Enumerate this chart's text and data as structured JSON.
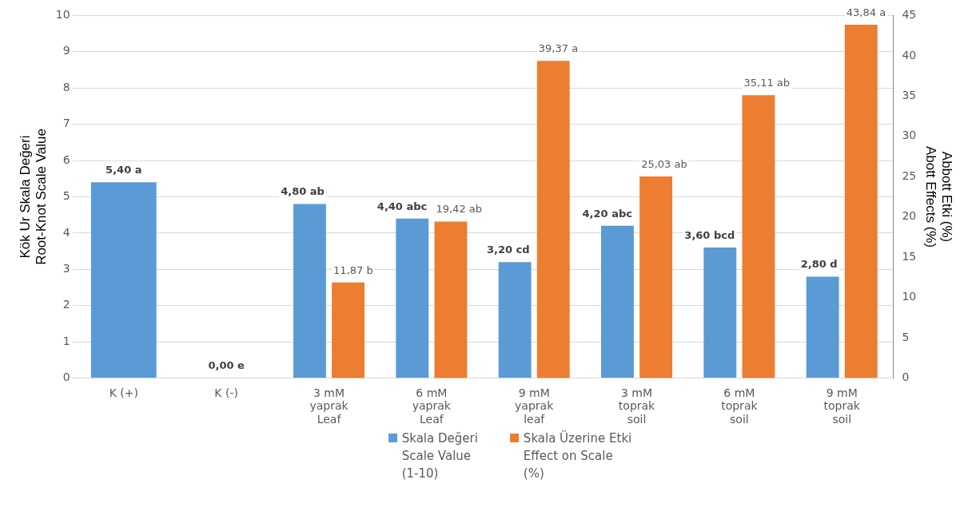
{
  "chart_data": {
    "type": "bar",
    "ylabel": "Kök Ur Skala Değeri\nRoot-Knot Scale Value",
    "y2label": "Abbott Etki (%)\nAbott Effects (%)",
    "categories": [
      "K (+)",
      "K (-)",
      "3 mM\nyaprak\nLeaf",
      "6 mM\nyaprak\nLeaf",
      "9 mM\nyaprak\nleaf",
      "3 mM\ntoprak\nsoil",
      "6 mM\ntoprak\nsoil",
      "9 mM\ntoprak\nsoil"
    ],
    "series": [
      {
        "name": "Skala Değeri\nScale Value\n(1-10)",
        "color": "#5b9bd5",
        "values": [
          5.4,
          0,
          4.8,
          4.4,
          3.2,
          4.2,
          3.6,
          2.8
        ],
        "value_labels": [
          "5,40 a",
          "0,00 e",
          "4,80 ab",
          "4,40 abc",
          "3,20 cd",
          "4,20 abc",
          "3,60 bcd",
          "2,80 d"
        ]
      },
      {
        "name": "Skala Üzerine Etki\nEffect on Scale\n(%)",
        "color": "#ed7d31",
        "axis": "y2",
        "values": [
          null,
          null,
          11.87,
          19.42,
          39.37,
          25.03,
          35.11,
          43.84
        ],
        "value_labels": [
          null,
          null,
          "11,87 b",
          "19,42 ab",
          "39,37 a",
          "25,03 ab",
          "35,11 ab",
          "43,84 a"
        ]
      }
    ],
    "ylim": [
      0,
      10
    ],
    "yticks": [
      0,
      1,
      2,
      3,
      4,
      5,
      6,
      7,
      8,
      9,
      10
    ],
    "y2lim": [
      0,
      45
    ],
    "y2ticks": [
      0,
      5,
      10,
      15,
      20,
      25,
      30,
      35,
      40,
      45
    ],
    "grid": "y",
    "legend": "bottom"
  }
}
